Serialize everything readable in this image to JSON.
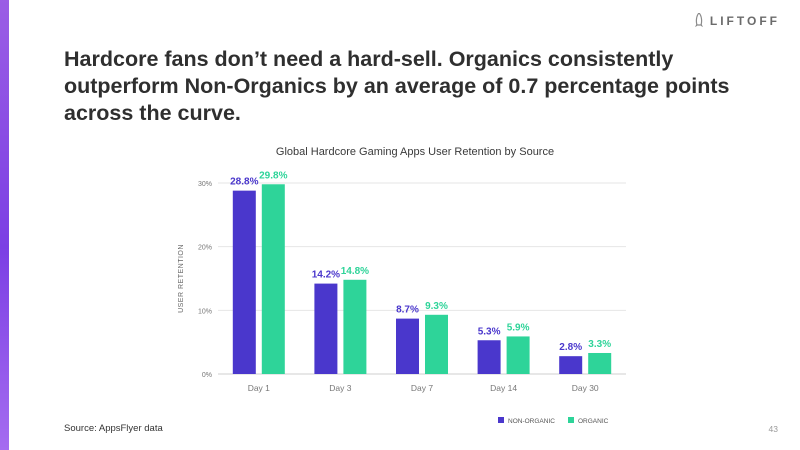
{
  "brand": {
    "name": "LIFTOFF",
    "icon": "rocket-icon"
  },
  "headline": "Hardcore fans don’t need a hard-sell. Organics consistently outperform Non-Organics by an average of 0.7 percentage points across the curve.",
  "footer": {
    "source": "Source: AppsFlyer data",
    "page_number": "43"
  },
  "colors": {
    "accent": "#8a4fe8",
    "non_organic": "#4a37cc",
    "organic": "#2ed499",
    "grid": "#e6e6e6"
  },
  "chart_data": {
    "type": "bar",
    "title": "Global Hardcore Gaming Apps User Retention by Source",
    "xlabel": "",
    "ylabel": "USER RETENTION",
    "categories": [
      "Day 1",
      "Day 3",
      "Day 7",
      "Day 14",
      "Day 30"
    ],
    "series": [
      {
        "name": "NON-ORGANIC",
        "color": "#4a37cc",
        "values": [
          28.8,
          14.2,
          8.7,
          5.3,
          2.8
        ],
        "labels": [
          "28.8%",
          "14.2%",
          "8.7%",
          "5.3%",
          "2.8%"
        ]
      },
      {
        "name": "ORGANIC",
        "color": "#2ed499",
        "values": [
          29.8,
          14.8,
          9.3,
          5.9,
          3.3
        ],
        "labels": [
          "29.8%",
          "14.8%",
          "9.3%",
          "5.9%",
          "3.3%"
        ]
      }
    ],
    "ylim": [
      0,
      30
    ],
    "yticks": [
      0,
      10,
      20,
      30
    ],
    "ytick_labels": [
      "0%",
      "10%",
      "20%",
      "30%"
    ],
    "grid": true,
    "legend": "bottom-right"
  }
}
